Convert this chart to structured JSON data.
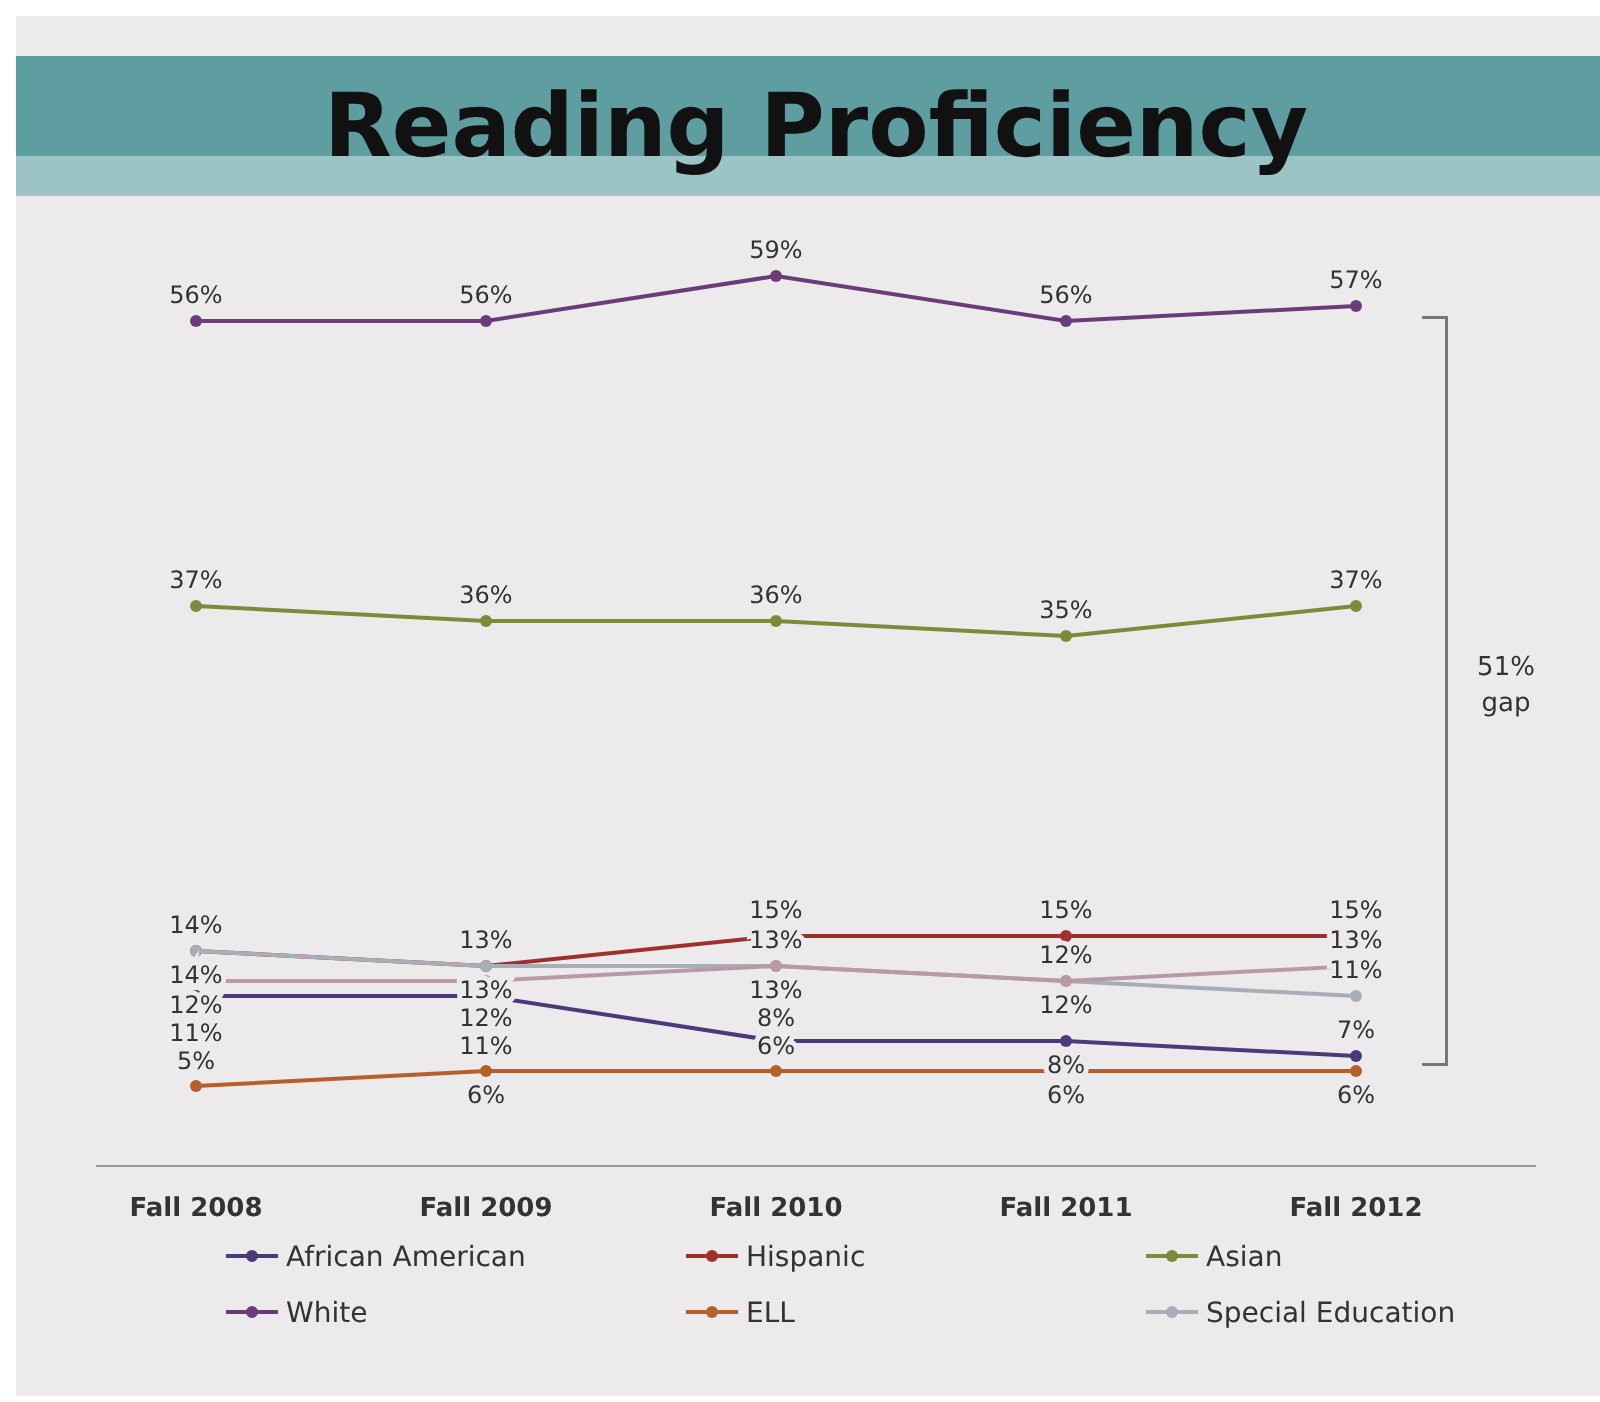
{
  "chart_data": {
    "type": "line",
    "title": "Reading Proficiency",
    "categories": [
      "Fall 2008",
      "Fall 2009",
      "Fall 2010",
      "Fall 2011",
      "Fall 2012"
    ],
    "series": [
      {
        "name": "African American",
        "color": "#4b3a7a",
        "values": [
          11,
          11,
          8,
          8,
          7
        ],
        "value_labels": [
          "11%",
          "11%",
          "8%",
          "8%",
          "7%"
        ]
      },
      {
        "name": "Hispanic",
        "color": "#a0302e",
        "values": [
          14,
          13,
          15,
          15,
          15
        ],
        "value_labels": [
          "14%",
          "13%",
          "15%",
          "15%",
          "15%"
        ]
      },
      {
        "name": "Asian",
        "color": "#7d8a3a",
        "values": [
          37,
          36,
          36,
          35,
          37
        ],
        "value_labels": [
          "37%",
          "36%",
          "36%",
          "35%",
          "37%"
        ]
      },
      {
        "name": "White",
        "color": "#6a3d7a",
        "values": [
          56,
          56,
          59,
          56,
          57
        ],
        "value_labels": [
          "56%",
          "56%",
          "59%",
          "56%",
          "57%"
        ]
      },
      {
        "name": "ELL",
        "color": "#b5602a",
        "values": [
          5,
          6,
          6,
          6,
          6
        ],
        "value_labels": [
          "5%",
          "6%",
          "6%",
          "6%",
          "6%"
        ]
      },
      {
        "name": "Special Education",
        "color": "#a8aeb8",
        "values": [
          14,
          13,
          13,
          12,
          11
        ],
        "value_labels": [
          "14%",
          "13%",
          "13%",
          "12%",
          "11%"
        ]
      },
      {
        "color": "#b89aa6",
        "values": [
          12,
          12,
          13,
          12,
          13
        ],
        "value_labels": [
          "12%",
          "12%",
          "13%",
          "12%",
          "13%"
        ]
      }
    ],
    "annotations": [
      "51% gap"
    ],
    "legend": "bottom",
    "marker": "circle",
    "line_style": "solid",
    "grid": false
  }
}
